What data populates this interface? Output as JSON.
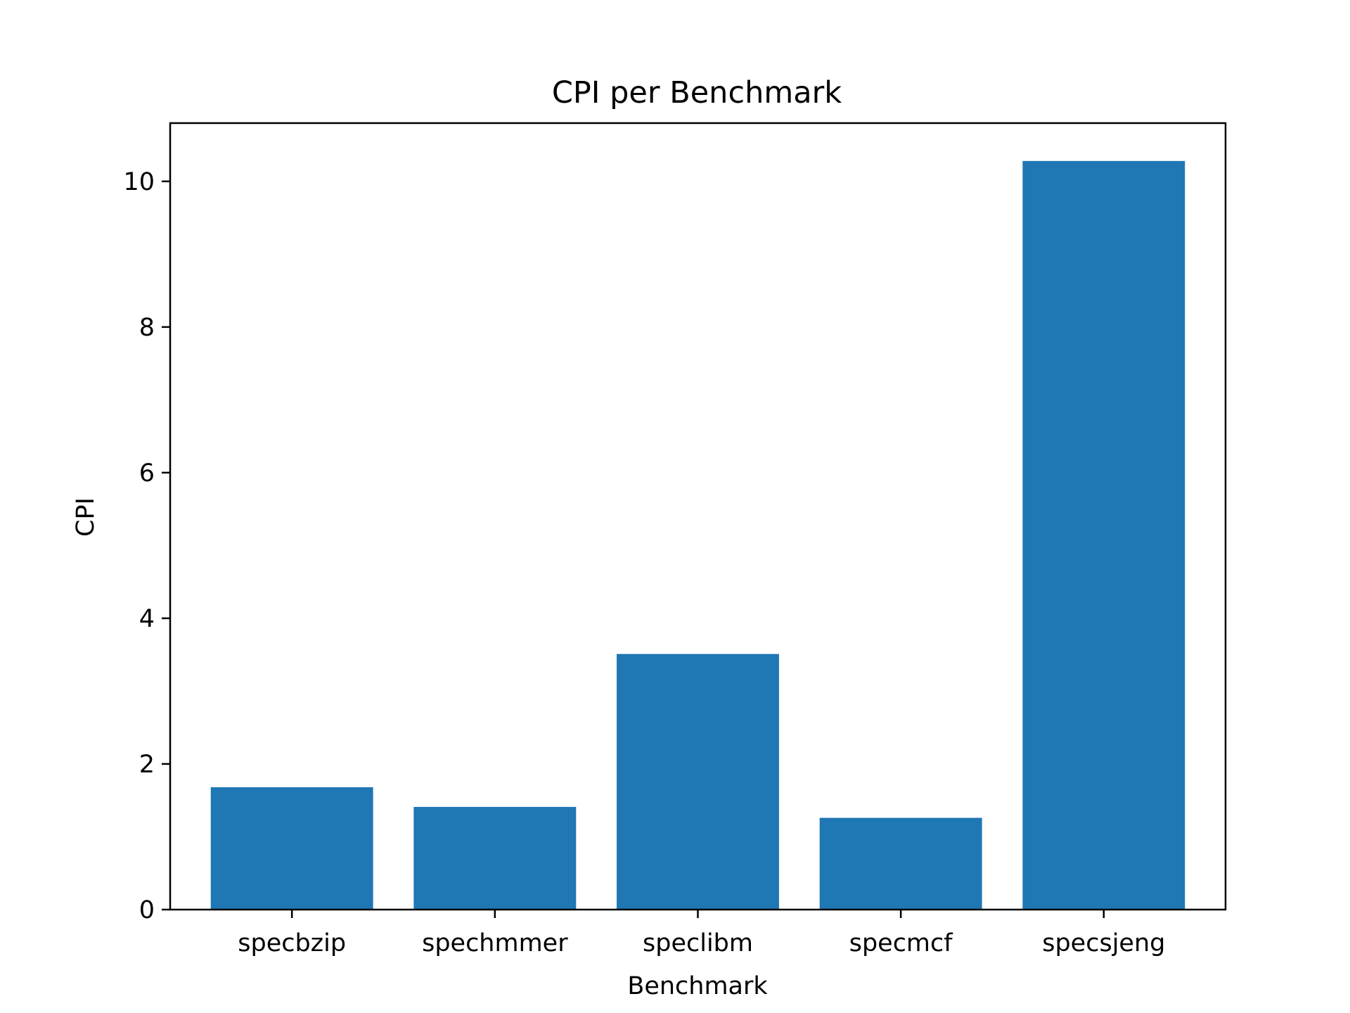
{
  "chart_data": {
    "type": "bar",
    "title": "CPI per Benchmark",
    "xlabel": "Benchmark",
    "ylabel": "CPI",
    "categories": [
      "specbzip",
      "spechmmer",
      "speclibm",
      "specmcf",
      "specsjeng"
    ],
    "values": [
      1.68,
      1.41,
      3.51,
      1.26,
      10.28
    ],
    "ylim": [
      0,
      10.8
    ],
    "yticks": [
      0,
      2,
      4,
      6,
      8,
      10
    ],
    "grid": false,
    "legend": "none",
    "colors": {
      "bar": "#1f77b4",
      "axis": "#000000",
      "background": "#ffffff"
    }
  }
}
